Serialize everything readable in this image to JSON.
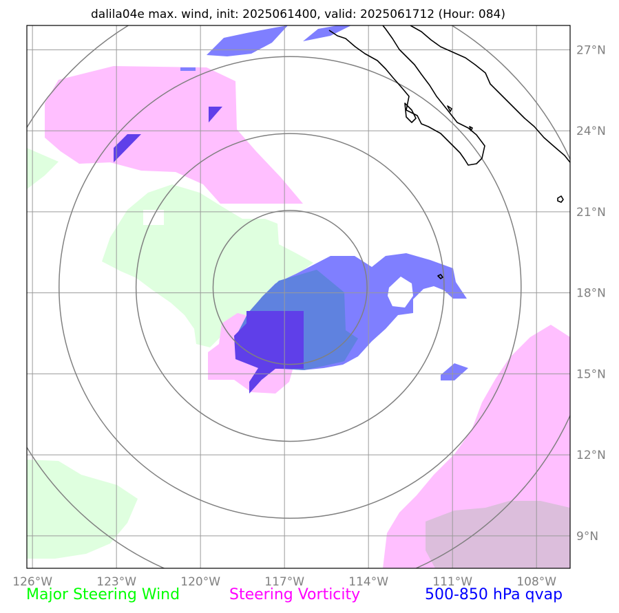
{
  "figure": {
    "title": "dalila04e max. wind, init: 2025061400, valid: 2025061712 (Hour: 084)",
    "map_extent": {
      "lon_min": -126.2,
      "lon_max": -106.8,
      "lat_min": 7.8,
      "lat_max": 27.9
    },
    "storm_center": {
      "lon": -116.8,
      "lat": 18.2
    },
    "range_rings_deg": [
      2.75,
      5.5,
      8.25,
      11.0
    ],
    "longitude_ticks": [
      {
        "value": -126,
        "label": "126°W"
      },
      {
        "value": -123,
        "label": "123°W"
      },
      {
        "value": -120,
        "label": "120°W"
      },
      {
        "value": -117,
        "label": "117°W"
      },
      {
        "value": -114,
        "label": "114°W"
      },
      {
        "value": -111,
        "label": "111°W"
      },
      {
        "value": -108,
        "label": "108°W"
      }
    ],
    "latitude_ticks": [
      {
        "value": 9,
        "label": "9°N"
      },
      {
        "value": 12,
        "label": "12°N"
      },
      {
        "value": 15,
        "label": "15°N"
      },
      {
        "value": 18,
        "label": "18°N"
      },
      {
        "value": 21,
        "label": "21°N"
      },
      {
        "value": 24,
        "label": "24°N"
      },
      {
        "value": 27,
        "label": "27°N"
      }
    ]
  },
  "legend": {
    "steering_wind": {
      "label": "Major Steering Wind",
      "color": "#00ff00"
    },
    "steering_vorticity": {
      "label": "Steering Vorticity",
      "color": "#ff00ff"
    },
    "qvap": {
      "label": "500-850 hPa qvap",
      "color": "#0000ff"
    }
  },
  "colors": {
    "wind_fill": "#dfffdf",
    "vorticity_fill": "#ffbfff",
    "qvap_fill": "#7f7fff",
    "qvap_core": "#5f3fe9",
    "overlap_fill": "#dcbedc",
    "qvap_mixed": "#5f82df",
    "grid": "#9a9a9a",
    "rings": "#808080",
    "coast": "#000000"
  }
}
